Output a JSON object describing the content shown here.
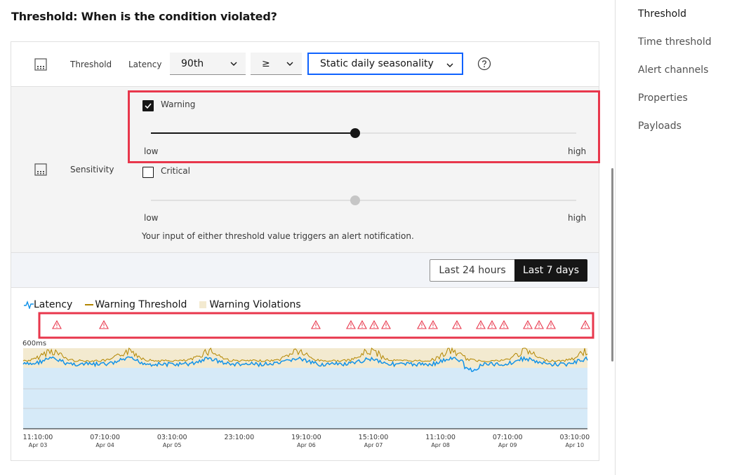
{
  "title": "Threshold: When is the condition violated?",
  "threshold_row": {
    "label": "Threshold",
    "metric_label": "Latency",
    "percentile": "90th",
    "operator": "≥",
    "method": "Static daily seasonality"
  },
  "sensitivity": {
    "label": "Sensitivity",
    "warning": {
      "label": "Warning",
      "checked": true,
      "level": 0.48,
      "low": "low",
      "high": "high"
    },
    "critical": {
      "label": "Critical",
      "checked": false,
      "level": 0.48,
      "low": "low",
      "high": "high"
    },
    "hint": "Your input of either threshold value triggers an alert notification."
  },
  "time_range": {
    "options": [
      "Last 24 hours",
      "Last 7 days"
    ],
    "selected": "Last 7 days"
  },
  "chart": {
    "legend": {
      "latency": "Latency",
      "warning_threshold": "Warning Threshold",
      "warning_violations": "Warning Violations"
    },
    "y_max_label": "600ms",
    "x_ticks": [
      {
        "time": "11:10:00",
        "date": "Apr 03"
      },
      {
        "time": "07:10:00",
        "date": "Apr 04"
      },
      {
        "time": "03:10:00",
        "date": "Apr 05"
      },
      {
        "time": "23:10:00",
        "date": ""
      },
      {
        "time": "19:10:00",
        "date": "Apr 06"
      },
      {
        "time": "15:10:00",
        "date": "Apr 07"
      },
      {
        "time": "11:10:00",
        "date": "Apr 08"
      },
      {
        "time": "07:10:00",
        "date": "Apr 09"
      },
      {
        "time": "03:10:00",
        "date": "Apr 10"
      }
    ],
    "colors": {
      "latency": "#1192e8",
      "threshold": "#b28600",
      "violation_band": "#f3ead0",
      "area": "#d6eaf8",
      "alert": "#e8374c"
    }
  },
  "nav": {
    "items": [
      "Threshold",
      "Time threshold",
      "Alert channels",
      "Properties",
      "Payloads"
    ],
    "active": "Threshold"
  }
}
